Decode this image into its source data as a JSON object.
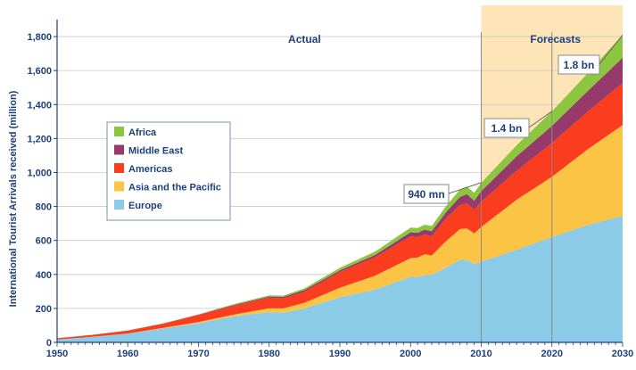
{
  "chart_data": {
    "type": "area",
    "stacked": true,
    "ylabel": "International Tourist Arrivals received (million)",
    "xlabel": "",
    "ylim": [
      0,
      1900
    ],
    "xlim": [
      1950,
      2030
    ],
    "y_ticks": [
      0,
      200,
      400,
      600,
      800,
      1000,
      1200,
      1400,
      1600,
      1800
    ],
    "y_tick_labels": [
      "0",
      "200",
      "400",
      "600",
      "800",
      "1,000",
      "1,200",
      "1,400",
      "1,600",
      "1,800"
    ],
    "x_ticks": [
      1950,
      1960,
      1970,
      1980,
      1990,
      2000,
      2010,
      2020,
      2030
    ],
    "x_tick_labels": [
      "1950",
      "1960",
      "1970",
      "1980",
      "1990",
      "2000",
      "2010",
      "2020",
      "2030"
    ],
    "regions": {
      "actual_label": "Actual",
      "forecast_label": "Forecasts",
      "forecast_start": 2010,
      "forecast_end": 2030,
      "forecast_color": "#fde5b8"
    },
    "x": [
      1950,
      1955,
      1960,
      1965,
      1970,
      1975,
      1980,
      1982,
      1985,
      1990,
      1995,
      2000,
      2001,
      2002,
      2003,
      2005,
      2007,
      2008,
      2009,
      2010,
      2015,
      2020,
      2025,
      2030
    ],
    "series": [
      {
        "name": "Europe",
        "color": "#8ccbe8",
        "values": [
          17,
          32,
          51,
          82,
          113,
          153,
          178,
          175,
          200,
          265,
          310,
          386,
          384,
          396,
          398,
          441,
          485,
          487,
          461,
          475,
          545,
          620,
          690,
          744
        ]
      },
      {
        "name": "Asia and the Pacific",
        "color": "#fcc445",
        "values": [
          0.2,
          1,
          1,
          3,
          6,
          10,
          23,
          25,
          33,
          56,
          82,
          110,
          115,
          123,
          113,
          154,
          182,
          184,
          180,
          204,
          295,
          355,
          445,
          535
        ]
      },
      {
        "name": "Americas",
        "color": "#fa3d1e",
        "values": [
          7,
          11,
          17,
          24,
          42,
          52,
          62,
          60,
          65,
          93,
          109,
          128,
          122,
          116,
          113,
          134,
          143,
          147,
          140,
          150,
          170,
          199,
          222,
          248
        ]
      },
      {
        "name": "Middle East",
        "color": "#963a6c",
        "values": [
          0.2,
          0.3,
          0.6,
          1.5,
          2,
          5,
          7,
          8,
          10,
          10,
          14,
          24,
          24,
          29,
          30,
          37,
          47,
          55,
          53,
          61,
          85,
          101,
          120,
          149
        ]
      },
      {
        "name": "Africa",
        "color": "#8cc63f",
        "values": [
          0.5,
          1,
          1,
          2,
          2,
          5,
          7,
          7,
          10,
          15,
          20,
          28,
          28,
          29,
          31,
          35,
          43,
          44,
          46,
          49,
          65,
          85,
          105,
          134
        ]
      }
    ],
    "legend_position": "left-center",
    "annotations": [
      {
        "text": "940 mn",
        "x": 2010,
        "y": 940
      },
      {
        "text": "1.4 bn",
        "x": 2020,
        "y": 1360
      },
      {
        "text": "1.8 bn",
        "x": 2030,
        "y": 1809
      }
    ]
  }
}
